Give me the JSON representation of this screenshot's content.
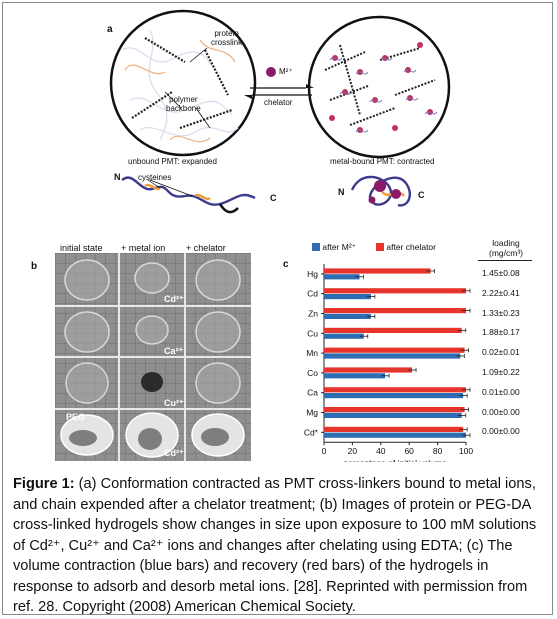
{
  "panel_a": {
    "letter": "a",
    "label_crosslink": [
      "protein",
      "crosslink"
    ],
    "label_backbone": [
      "polymer",
      "backbone"
    ],
    "label_unbound": "unbound PMT: expanded",
    "label_bound": "metal-bound PMT: contracted",
    "label_metal": "M²⁺",
    "label_chelator": "chelator",
    "label_cysteines": "cysteines",
    "label_N_left": "N",
    "label_C_left": "C",
    "label_N_right": "N",
    "label_C_right": "C"
  },
  "panel_b": {
    "letter": "b",
    "headers": [
      "initial state",
      "+ metal ion",
      "+ chelator"
    ],
    "row_labels": [
      "Cd²⁺",
      "Ca²⁺",
      "Cu²⁺",
      "Cd²⁺"
    ],
    "peg_label": "PEG"
  },
  "panel_c": {
    "letter": "c",
    "loading_header": [
      "loading",
      "(mg/cm³)"
    ],
    "loading_values": [
      "1.45±0.08",
      "2.22±0.41",
      "1.33±0.23",
      "1.88±0.17",
      "0.02±0.01",
      "1.09±0.22",
      "0.01±0.00",
      "0.00±0.00",
      "0.00±0.00"
    ],
    "xlabel": "percentage of initial volume"
  },
  "chart_data": {
    "type": "bar",
    "orientation": "horizontal",
    "categories": [
      "Hg",
      "Cd",
      "Zn",
      "Cu",
      "Mn",
      "Co",
      "Ca",
      "Mg",
      "Cd*"
    ],
    "series": [
      {
        "name": "after M²⁺",
        "color": "#2f6db3",
        "values": [
          25,
          33,
          33,
          28,
          96,
          43,
          98,
          97,
          100
        ]
      },
      {
        "name": "after chelator",
        "color": "#e8352b",
        "values": [
          75,
          100,
          100,
          97,
          99,
          62,
          100,
          99,
          98
        ]
      }
    ],
    "xlim": [
      0,
      100
    ],
    "xticks": [
      "0",
      "20",
      "40",
      "60",
      "80",
      "100"
    ],
    "xlabel": "percentage of initial volume",
    "legend": "top"
  },
  "caption": {
    "fig_label": "Figure 1:",
    "text": " (a) Conformation contracted as PMT cross-linkers bound to metal ions, and chain expended after a chelator treatment; (b) Images of protein or PEG-DA cross-linked hydrogels show changes in size upon exposure to 100 mM solutions of Cd²⁺, Cu²⁺ and Ca²⁺ ions and changes after chelating using EDTA; (c) The volume contraction (blue bars) and recovery (red bars) of the hydrogels in response to adsorb and desorb metal ions. [28]. Reprinted with permission from ref. 28. Copyright (2008) American Chemical Society."
  }
}
